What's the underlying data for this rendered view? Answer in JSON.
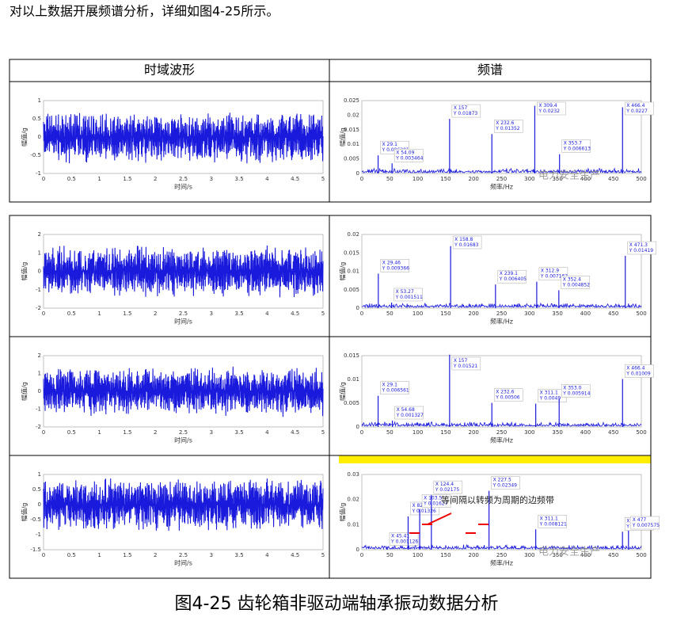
{
  "intro": "对以上数据开展频谱分析，详细如图4-25所示。",
  "table": {
    "headers": [
      "时域波形",
      "频谱"
    ],
    "rows": [
      {
        "waveform": {
          "ylabel": "幅值/g",
          "xlabel": "时间/s",
          "yticks": [
            "-1",
            "-0.5",
            "0",
            "0.5",
            "1"
          ],
          "xticks": [
            "0",
            "0.5",
            "1",
            "1.5",
            "2",
            "2.5",
            "3",
            "3.5",
            "4",
            "4.5",
            "5"
          ]
        },
        "spectrum": {
          "ylabel": "幅值/g",
          "xlabel": "频率/Hz",
          "yticks": [
            "0",
            "0.005",
            "0.01",
            "0.015",
            "0.02",
            "0.025"
          ],
          "xticks": [
            "0",
            "50",
            "100",
            "150",
            "200",
            "250",
            "300",
            "350",
            "400",
            "450",
            "500"
          ],
          "tips": [
            {
              "x": "X 29.1",
              "y": "Y 0.006201"
            },
            {
              "x": "X 54.09",
              "y": "Y 0.003464"
            },
            {
              "x": "X 157",
              "y": "Y 0.01873"
            },
            {
              "x": "X 232.6",
              "y": "Y 0.01352"
            },
            {
              "x": "X 309.4",
              "y": "Y 0.0232"
            },
            {
              "x": "X 353.7",
              "y": "Y 0.006613"
            },
            {
              "x": "X 466.4",
              "y": "Y 0.0227"
            }
          ]
        }
      },
      {
        "waveform": {
          "ylabel": "幅值/g",
          "xlabel": "时间/s",
          "yticks": [
            "-2",
            "-1",
            "0",
            "1",
            "2"
          ],
          "xticks": [
            "0",
            "0.5",
            "1",
            "1.5",
            "2",
            "2.5",
            "3",
            "3.5",
            "4",
            "4.5",
            "5"
          ]
        },
        "spectrum": {
          "ylabel": "幅值/g",
          "xlabel": "频率/Hz",
          "yticks": [
            "0",
            "0.005",
            "0.01",
            "0.015",
            "0.02"
          ],
          "xticks": [
            "0",
            "50",
            "100",
            "150",
            "200",
            "250",
            "300",
            "350",
            "400",
            "450",
            "500"
          ],
          "tips": [
            {
              "x": "X 29.46",
              "y": "Y 0.009366"
            },
            {
              "x": "X 53.27",
              "y": "Y 0.001511"
            },
            {
              "x": "X 158.8",
              "y": "Y 0.01683"
            },
            {
              "x": "X 239.1",
              "y": "Y 0.006405"
            },
            {
              "x": "X 312.9",
              "y": "Y 0.007162"
            },
            {
              "x": "X 352.4",
              "y": "Y 0.004852"
            },
            {
              "x": "X 471.3",
              "y": "Y 0.01419"
            }
          ]
        }
      },
      {
        "waveform": {
          "ylabel": "幅值/g",
          "xlabel": "时间/s",
          "yticks": [
            "-2",
            "-1",
            "0",
            "1",
            "2"
          ],
          "xticks": [
            "0",
            "0.5",
            "1",
            "1.5",
            "2",
            "2.5",
            "3",
            "3.5",
            "4",
            "4.5",
            "5"
          ]
        },
        "spectrum": {
          "ylabel": "幅值/g",
          "xlabel": "频率/Hz",
          "yticks": [
            "0",
            "0.005",
            "0.01",
            "0.015"
          ],
          "xticks": [
            "0",
            "50",
            "100",
            "150",
            "200",
            "250",
            "300",
            "350",
            "400",
            "450",
            "500"
          ],
          "tips": [
            {
              "x": "X 29.1",
              "y": "Y 0.006561"
            },
            {
              "x": "X 54.68",
              "y": "Y 0.001327"
            },
            {
              "x": "X 157",
              "y": "Y 0.01521"
            },
            {
              "x": "X 232.6",
              "y": "Y 0.00506"
            },
            {
              "x": "X 311.1",
              "y": "Y 0.0049"
            },
            {
              "x": "X 353.0",
              "y": "Y 0.005914"
            },
            {
              "x": "X 466.4",
              "y": "Y 0.01009"
            }
          ]
        }
      },
      {
        "waveform": {
          "ylabel": "幅值/g",
          "xlabel": "时间/s",
          "yticks": [
            "-1.5",
            "-1",
            "-0.5",
            "0",
            "0.5",
            "1"
          ],
          "xticks": [
            "0",
            "0.5",
            "1",
            "1.5",
            "2",
            "2.5",
            "3",
            "3.5",
            "4",
            "4.5",
            "5"
          ]
        },
        "spectrum": {
          "ylabel": "幅值/g",
          "xlabel": "频率/Hz",
          "yticks": [
            "0",
            "0.01",
            "0.02",
            "0.03"
          ],
          "xticks": [
            "0",
            "50",
            "100",
            "150",
            "200",
            "250",
            "300",
            "350",
            "400",
            "450",
            "500"
          ],
          "tips": [
            {
              "x": "X 45.41",
              "y": "Y 0.001126"
            },
            {
              "x": "X 82.81",
              "y": "Y 0.01326"
            },
            {
              "x": "X 103.5",
              "y": "Y 0.01627"
            },
            {
              "x": "X 124.4",
              "y": "Y 0.02175"
            },
            {
              "x": "X 227.5",
              "y": "Y 0.02349"
            },
            {
              "x": "X 311.1",
              "y": "Y 0.008121"
            },
            {
              "x": "X 466.3",
              "y": "Y 0.00718"
            },
            {
              "x": "X 477",
              "y": "Y 0.007575"
            }
          ],
          "annotation": "等间隔以转频为周期的边频带"
        }
      }
    ]
  },
  "watermark": "电力安全生产",
  "caption": "图4-25 齿轮箱非驱动端轴承振动数据分析"
}
